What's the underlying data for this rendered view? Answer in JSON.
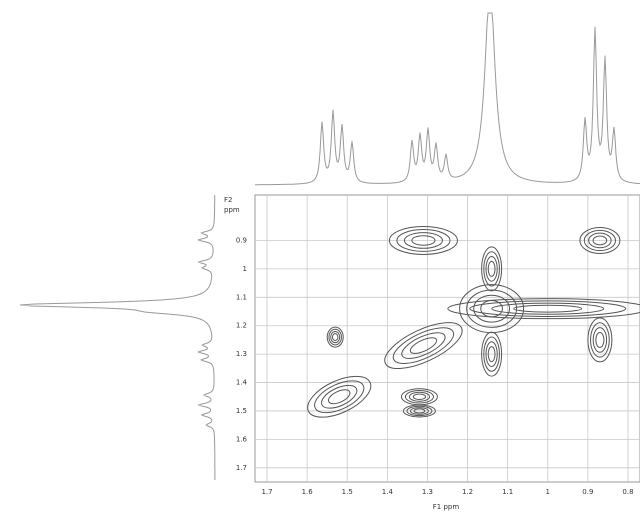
{
  "chart_data": {
    "type": "contour",
    "x_label": "F1 ppm",
    "y_label": [
      "F2",
      "ppm"
    ],
    "xlim": [
      1.73,
      0.77
    ],
    "xticks": [
      1.7,
      1.6,
      1.5,
      1.4,
      1.3,
      1.2,
      1.1,
      1.0,
      0.9,
      0.8
    ],
    "ylim": [
      0.74,
      1.75
    ],
    "yticks": [
      0.9,
      1.0,
      1.1,
      1.2,
      1.3,
      1.4,
      1.5,
      1.6,
      1.7
    ],
    "grid": true,
    "color": "#555555",
    "x": [
      1.31,
      0.87,
      1.14,
      1.14,
      1.14,
      1.31,
      1.52,
      1.53,
      0.87,
      1.32,
      1.32,
      1.0
    ],
    "y": [
      0.9,
      0.9,
      1.14,
      1.0,
      1.3,
      1.27,
      1.45,
      1.24,
      1.25,
      1.45,
      1.5,
      1.14
    ]
  }
}
